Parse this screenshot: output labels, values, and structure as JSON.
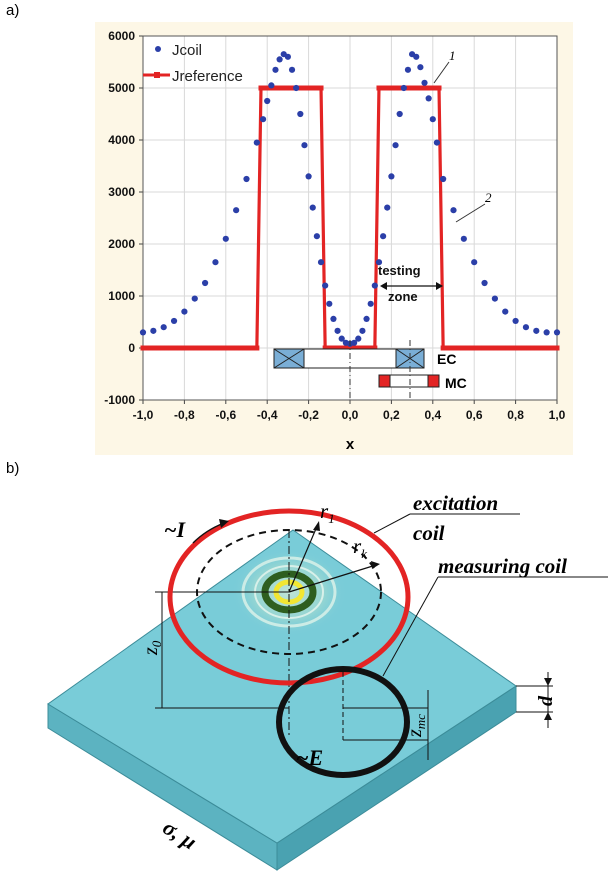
{
  "panel_a": {
    "label": "a)"
  },
  "panel_b": {
    "label": "b)"
  },
  "chart_data": {
    "type": "scatter",
    "xlabel": "x",
    "ylabel": "",
    "xlim": [
      -1.0,
      1.0
    ],
    "ylim": [
      -1000,
      6000
    ],
    "x_ticks": [
      "-1,0",
      "-0,8",
      "-0,6",
      "-0,4",
      "-0,2",
      "0,0",
      "0,2",
      "0,4",
      "0,6",
      "0,8",
      "1,0"
    ],
    "y_ticks": [
      "-1000",
      "0",
      "1000",
      "2000",
      "3000",
      "4000",
      "5000",
      "6000"
    ],
    "grid": true,
    "legend_position": "top-left",
    "series": [
      {
        "name": "Jcoil",
        "color": "#2b3fa8",
        "marker": "dot",
        "x": [
          -1.0,
          -0.95,
          -0.9,
          -0.85,
          -0.8,
          -0.75,
          -0.7,
          -0.65,
          -0.6,
          -0.55,
          -0.5,
          -0.45,
          -0.42,
          -0.4,
          -0.38,
          -0.36,
          -0.34,
          -0.32,
          -0.3,
          -0.28,
          -0.26,
          -0.24,
          -0.22,
          -0.2,
          -0.18,
          -0.16,
          -0.14,
          -0.12,
          -0.1,
          -0.08,
          -0.06,
          -0.04,
          -0.02,
          0.0,
          0.02,
          0.04,
          0.06,
          0.08,
          0.1,
          0.12,
          0.14,
          0.16,
          0.18,
          0.2,
          0.22,
          0.24,
          0.26,
          0.28,
          0.3,
          0.32,
          0.34,
          0.36,
          0.38,
          0.4,
          0.42,
          0.45,
          0.5,
          0.55,
          0.6,
          0.65,
          0.7,
          0.75,
          0.8,
          0.85,
          0.9,
          0.95,
          1.0
        ],
        "y": [
          300,
          330,
          400,
          520,
          700,
          950,
          1250,
          1650,
          2100,
          2650,
          3250,
          3950,
          4400,
          4750,
          5050,
          5350,
          5550,
          5650,
          5600,
          5350,
          5000,
          4500,
          3900,
          3300,
          2700,
          2150,
          1650,
          1200,
          850,
          560,
          330,
          180,
          100,
          80,
          100,
          180,
          330,
          560,
          850,
          1200,
          1650,
          2150,
          2700,
          3300,
          3900,
          4500,
          5000,
          5350,
          5650,
          5600,
          5400,
          5100,
          4800,
          4400,
          3950,
          3250,
          2650,
          2100,
          1650,
          1250,
          950,
          700,
          520,
          400,
          330,
          300,
          300
        ]
      },
      {
        "name": "Jreference",
        "color": "#e32424",
        "marker": "line",
        "x": [
          -1.0,
          -0.45,
          -0.43,
          -0.14,
          -0.12,
          0.12,
          0.14,
          0.43,
          0.45,
          1.0
        ],
        "y": [
          0,
          0,
          5000,
          5000,
          0,
          0,
          5000,
          5000,
          0,
          0
        ]
      }
    ],
    "annotations": [
      {
        "text": "1",
        "x": 0.44,
        "y": 5000
      },
      {
        "text": "2",
        "x": 0.55,
        "y": 2900
      },
      {
        "text": "testing",
        "x": 0.29,
        "y": 1520
      },
      {
        "text": "zone",
        "x": 0.29,
        "y": 1020
      },
      {
        "text": "EC",
        "x": 0.5,
        "y": -250
      },
      {
        "text": "MC",
        "x": 0.5,
        "y": -700
      }
    ]
  },
  "diagram_b": {
    "labels": {
      "current": "~I",
      "excitation": "excitation",
      "coil": "coil",
      "measuring": "measuring coil",
      "r1": "r",
      "r1_sub": "1",
      "rk": "r",
      "rk_sub": "k",
      "z0": "z",
      "z0_sub": "0",
      "zmc": "z",
      "zmc_sub": "mc",
      "d": "d",
      "emf": "~E",
      "material": "σ, μ"
    },
    "colors": {
      "plate_top": "#79ccd8",
      "plate_side": "#5cb3c1",
      "excitation_coil": "#e32424",
      "measuring_coil": "#111111",
      "inner_ring": "#2e5e1f",
      "core_ring": "#f2e632"
    }
  }
}
